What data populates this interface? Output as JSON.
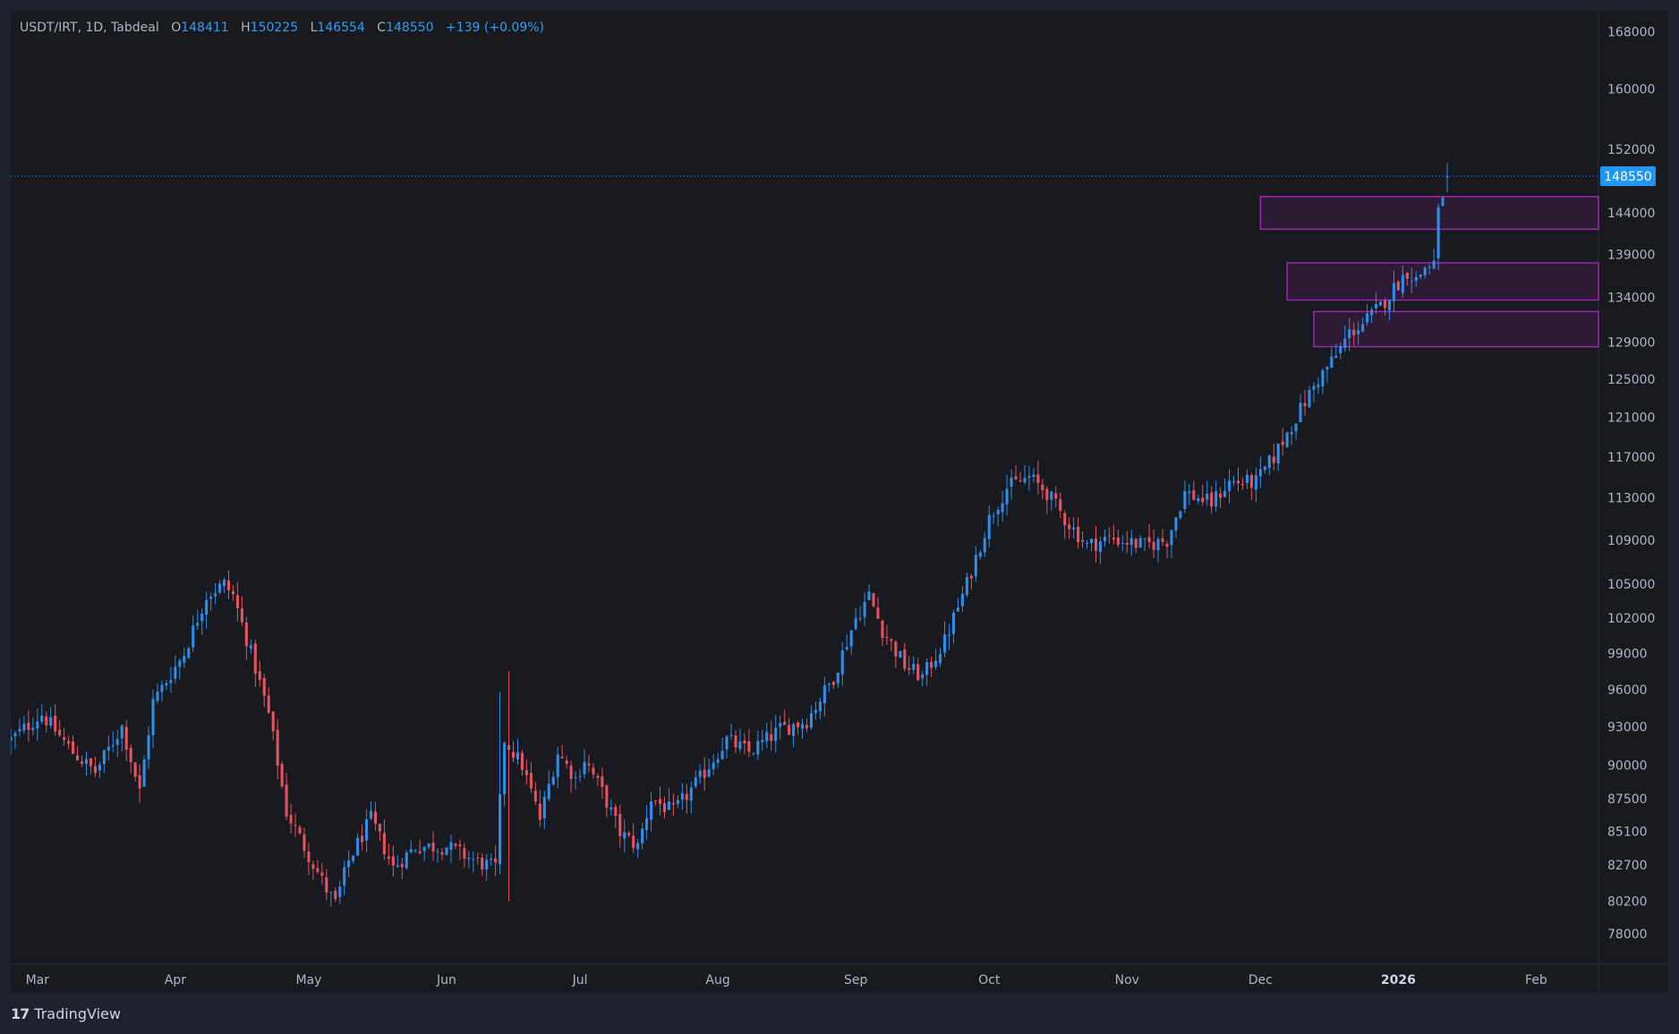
{
  "header": {
    "symbol_line": "USDT/IRT, 1D, Tabdeal",
    "open_label": "O",
    "open_value": "148411",
    "high_label": "H",
    "high_value": "150225",
    "low_label": "L",
    "low_value": "146554",
    "close_label": "C",
    "close_value": "148550",
    "change": "+139 (+0.09%)"
  },
  "footer": {
    "brand": "TradingView",
    "logo_glyph": "17"
  },
  "colors": {
    "up": "#2e8de8",
    "down": "#e4535f",
    "accent": "#2196f3",
    "zone_fill": "rgba(156,39,176,0.16)",
    "zone_border": "#9c27b0",
    "background": "#181a1f",
    "frame": "#1e222d"
  },
  "chart_data": {
    "type": "candlestick",
    "symbol": "USDT/IRT",
    "interval": "1D",
    "exchange": "Tabdeal",
    "price_axis_ticks": [
      168000,
      160000,
      152000,
      144000,
      139000,
      134000,
      129000,
      125000,
      121000,
      117000,
      113000,
      109000,
      105000,
      102000,
      99000,
      96000,
      93000,
      90000,
      87500,
      85100,
      82700,
      80200,
      78000
    ],
    "price_scale": "log",
    "time_axis_labels": [
      {
        "label": "Mar",
        "date": "2025-03-01"
      },
      {
        "label": "Apr",
        "date": "2025-04-01"
      },
      {
        "label": "May",
        "date": "2025-05-01"
      },
      {
        "label": "Jun",
        "date": "2025-06-01"
      },
      {
        "label": "Jul",
        "date": "2025-07-01"
      },
      {
        "label": "Aug",
        "date": "2025-08-01"
      },
      {
        "label": "Sep",
        "date": "2025-09-01"
      },
      {
        "label": "Oct",
        "date": "2025-10-01"
      },
      {
        "label": "Nov",
        "date": "2025-11-01"
      },
      {
        "label": "Dec",
        "date": "2025-12-01"
      },
      {
        "label": "2026",
        "date": "2026-01-01",
        "bold": true
      },
      {
        "label": "Feb",
        "date": "2026-02-01"
      }
    ],
    "x_range": [
      "2025-02-23",
      "2026-02-15"
    ],
    "last_price": 148550,
    "last_price_label": "148550",
    "zones": [
      {
        "from": "2025-12-01",
        "low": 142000,
        "high": 146000
      },
      {
        "from": "2025-12-07",
        "low": 133700,
        "high": 138000
      },
      {
        "from": "2025-12-13",
        "low": 128500,
        "high": 132400
      }
    ],
    "close_path": [
      [
        "2025-02-23",
        92000
      ],
      [
        "2025-03-02",
        94000
      ],
      [
        "2025-03-09",
        91000
      ],
      [
        "2025-03-14",
        89500
      ],
      [
        "2025-03-20",
        93000
      ],
      [
        "2025-03-24",
        88000
      ],
      [
        "2025-03-27",
        95000
      ],
      [
        "2025-04-03",
        99000
      ],
      [
        "2025-04-08",
        104000
      ],
      [
        "2025-04-12",
        105000
      ],
      [
        "2025-04-14",
        104000
      ],
      [
        "2025-04-18",
        99000
      ],
      [
        "2025-04-22",
        94000
      ],
      [
        "2025-04-26",
        86500
      ],
      [
        "2025-04-30",
        84000
      ],
      [
        "2025-05-05",
        81000
      ],
      [
        "2025-05-07",
        80000
      ],
      [
        "2025-05-10",
        83000
      ],
      [
        "2025-05-15",
        86000
      ],
      [
        "2025-05-20",
        82500
      ],
      [
        "2025-05-25",
        84000
      ],
      [
        "2025-06-01",
        84000
      ],
      [
        "2025-06-08",
        82900
      ],
      [
        "2025-06-12",
        82500
      ],
      [
        "2025-06-14",
        92000
      ],
      [
        "2025-06-18",
        90000
      ],
      [
        "2025-06-22",
        86000
      ],
      [
        "2025-06-26",
        91000
      ],
      [
        "2025-06-30",
        89000
      ],
      [
        "2025-07-02",
        90500
      ],
      [
        "2025-07-06",
        88000
      ],
      [
        "2025-07-10",
        85000
      ],
      [
        "2025-07-14",
        84000
      ],
      [
        "2025-07-17",
        87500
      ],
      [
        "2025-07-22",
        86500
      ],
      [
        "2025-07-28",
        89000
      ],
      [
        "2025-08-03",
        92000
      ],
      [
        "2025-08-08",
        91000
      ],
      [
        "2025-08-15",
        92800
      ],
      [
        "2025-08-21",
        93500
      ],
      [
        "2025-08-27",
        97000
      ],
      [
        "2025-09-01",
        102000
      ],
      [
        "2025-09-04",
        104000
      ],
      [
        "2025-09-07",
        101000
      ],
      [
        "2025-09-12",
        98000
      ],
      [
        "2025-09-16",
        97000
      ],
      [
        "2025-09-21",
        100000
      ],
      [
        "2025-09-26",
        105000
      ],
      [
        "2025-10-01",
        111000
      ],
      [
        "2025-10-05",
        114000
      ],
      [
        "2025-10-10",
        115000
      ],
      [
        "2025-10-14",
        113500
      ],
      [
        "2025-10-18",
        111000
      ],
      [
        "2025-10-23",
        108500
      ],
      [
        "2025-10-28",
        109200
      ],
      [
        "2025-11-05",
        108500
      ],
      [
        "2025-11-10",
        109000
      ],
      [
        "2025-11-14",
        113500
      ],
      [
        "2025-11-20",
        112500
      ],
      [
        "2025-11-24",
        114500
      ],
      [
        "2025-11-30",
        114500
      ],
      [
        "2025-12-04",
        117000
      ],
      [
        "2025-12-09",
        121000
      ],
      [
        "2025-12-14",
        125000
      ],
      [
        "2025-12-18",
        127500
      ],
      [
        "2025-12-21",
        130000
      ],
      [
        "2025-12-24",
        131000
      ],
      [
        "2025-12-28",
        133000
      ],
      [
        "2025-12-31",
        135000
      ],
      [
        "2026-01-03",
        137000
      ],
      [
        "2026-01-05",
        136000
      ],
      [
        "2026-01-07",
        137500
      ],
      [
        "2026-01-09",
        138000
      ],
      [
        "2026-01-10",
        144000
      ],
      [
        "2026-01-12",
        148550
      ]
    ]
  }
}
